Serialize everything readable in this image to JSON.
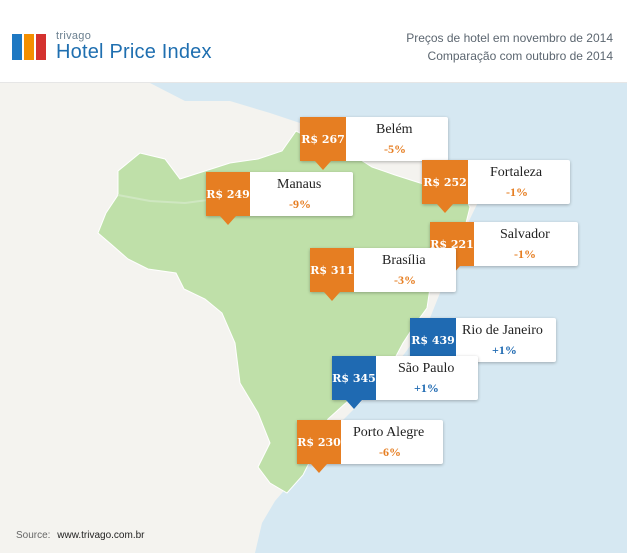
{
  "header": {
    "brand": "trivago",
    "product": "Hotel Price Index",
    "subtitle_line1": "Preços de hotel em novembro de 2014",
    "subtitle_line2": "Comparação com outubro de 2014"
  },
  "colors": {
    "ocean": "#d6e8f2",
    "land": "#f4f3ef",
    "brazil": "#bfe0a9",
    "decrease": "#e67e22",
    "increase": "#1f6ab2"
  },
  "cities": [
    {
      "name": "Belém",
      "price": "R$ 267",
      "change": "-5%",
      "trend": "down"
    },
    {
      "name": "Manaus",
      "price": "R$ 249",
      "change": "-9%",
      "trend": "down"
    },
    {
      "name": "Fortaleza",
      "price": "R$ 252",
      "change": "-1%",
      "trend": "down"
    },
    {
      "name": "Salvador",
      "price": "R$ 221",
      "change": "-1%",
      "trend": "down"
    },
    {
      "name": "Brasília",
      "price": "R$ 311",
      "change": "-3%",
      "trend": "down"
    },
    {
      "name": "Rio de Janeiro",
      "price": "R$ 439",
      "change": "+1%",
      "trend": "up"
    },
    {
      "name": "São Paulo",
      "price": "R$ 345",
      "change": "+1%",
      "trend": "up"
    },
    {
      "name": "Porto Alegre",
      "price": "R$ 230",
      "change": "-6%",
      "trend": "down"
    }
  ],
  "footer": {
    "source_label": "Source:",
    "source_url": "www.trivago.com.br"
  }
}
